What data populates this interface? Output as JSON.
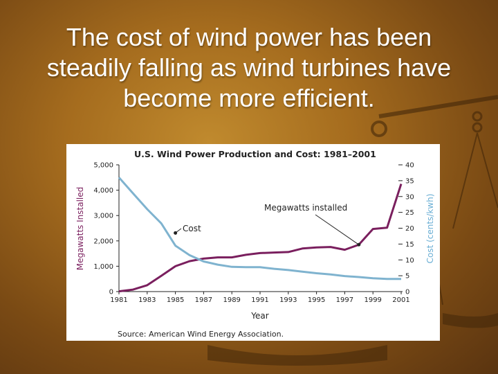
{
  "slide": {
    "title": "The cost of wind power has been steadily falling as wind turbines have become more efficient."
  },
  "colors": {
    "megawatts_series": "#7a1f5e",
    "cost_series": "#7fb3cf",
    "background": "#a56c1e"
  },
  "chart_data": {
    "type": "line",
    "title": "U.S. Wind Power Production and Cost: 1981–2001",
    "xlabel": "Year",
    "ylabel_left": "Megawatts Installed",
    "ylabel_right": "Cost (cents/kwh)",
    "xlim": [
      1981,
      2001
    ],
    "ylim_left": [
      0,
      5000
    ],
    "ylim_right": [
      0,
      40
    ],
    "x_ticks": [
      "1981",
      "1983",
      "1985",
      "1987",
      "1989",
      "1991",
      "1993",
      "1995",
      "1997",
      "1999",
      "2001"
    ],
    "y_ticks_left": [
      "0",
      "1,000",
      "2,000",
      "3,000",
      "4,000",
      "5,000"
    ],
    "y_ticks_right": [
      "0",
      "5",
      "10",
      "15",
      "20",
      "25",
      "30",
      "35",
      "40"
    ],
    "grid": false,
    "source": "Source: American Wind Energy Association.",
    "annotations": [
      {
        "text": "Cost",
        "series": "cost"
      },
      {
        "text": "Megawatts installed",
        "series": "megawatts"
      }
    ],
    "series": [
      {
        "key": "megawatts",
        "axis": "left",
        "x": [
          1981,
          1982,
          1983,
          1984,
          1985,
          1986,
          1987,
          1988,
          1989,
          1990,
          1991,
          1992,
          1993,
          1994,
          1995,
          1996,
          1997,
          1998,
          1999,
          2000,
          2001
        ],
        "values": [
          10,
          80,
          250,
          620,
          1000,
          1200,
          1300,
          1350,
          1350,
          1450,
          1520,
          1540,
          1560,
          1700,
          1740,
          1760,
          1650,
          1850,
          2470,
          2520,
          4250
        ]
      },
      {
        "key": "cost",
        "axis": "right",
        "x": [
          1981,
          1982,
          1983,
          1984,
          1985,
          1986,
          1987,
          1988,
          1989,
          1990,
          1991,
          1992,
          1993,
          1994,
          1995,
          1996,
          1997,
          1998,
          1999,
          2000,
          2001
        ],
        "values": [
          36,
          31,
          26,
          21.5,
          14.5,
          11.5,
          9.5,
          8.5,
          7.8,
          7.7,
          7.7,
          7.2,
          6.8,
          6.3,
          5.8,
          5.4,
          4.9,
          4.6,
          4.2,
          4.0,
          4.0
        ]
      }
    ]
  }
}
